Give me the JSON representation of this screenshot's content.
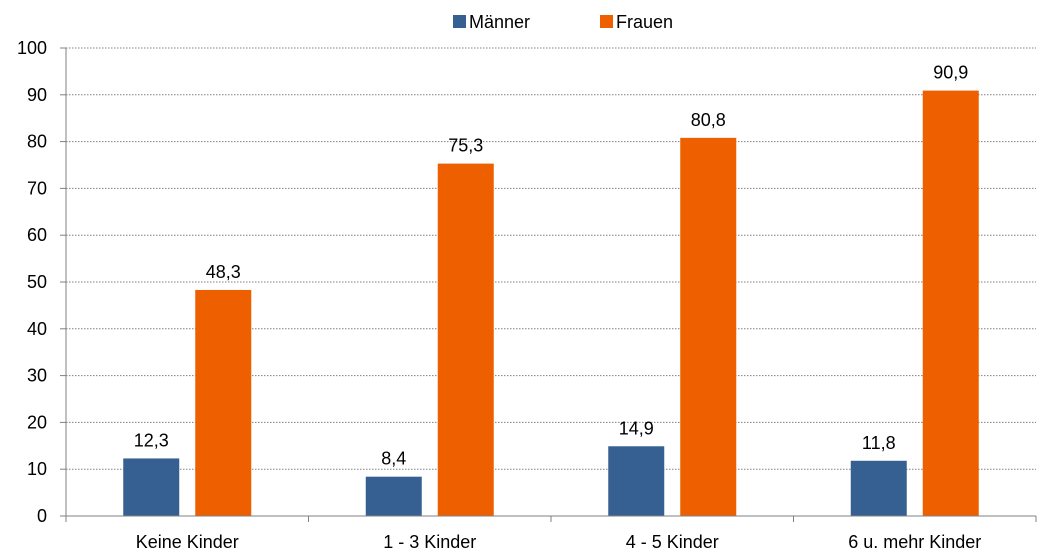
{
  "chart_data": {
    "type": "bar",
    "categories": [
      "Keine Kinder",
      "1 - 3 Kinder",
      "4 - 5 Kinder",
      "6 u. mehr Kinder"
    ],
    "series": [
      {
        "name": "Männer",
        "values": [
          12.3,
          8.4,
          14.9,
          11.8
        ],
        "labels": [
          "12,3",
          "8,4",
          "14,9",
          "11,8"
        ],
        "color": "#366092"
      },
      {
        "name": "Frauen",
        "values": [
          48.3,
          75.3,
          80.8,
          90.9
        ],
        "labels": [
          "48,3",
          "75,3",
          "80,8",
          "90,9"
        ],
        "color": "#ee5f00"
      }
    ],
    "ylim": [
      0,
      100
    ],
    "yticks": [
      0,
      10,
      20,
      30,
      40,
      50,
      60,
      70,
      80,
      90,
      100
    ],
    "title": "",
    "xlabel": "",
    "ylabel": "",
    "grid": "dotted horizontal",
    "legend_position": "top-center"
  }
}
